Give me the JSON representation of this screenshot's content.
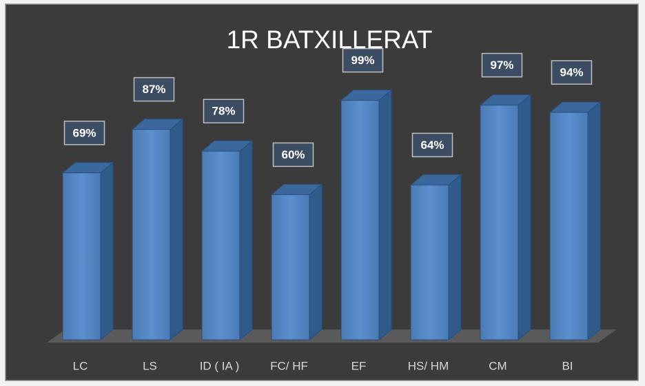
{
  "chart_data": {
    "type": "bar3d",
    "title": "1R  BATXILLERAT",
    "categories": [
      "LC",
      "LS",
      "ID ( IA )",
      "FC/ HF",
      "EF",
      "HS/ HM",
      "CM",
      "BI"
    ],
    "values": [
      69,
      87,
      78,
      60,
      99,
      64,
      97,
      94
    ],
    "value_labels": [
      "69%",
      "87%",
      "78%",
      "60%",
      "99%",
      "64%",
      "97%",
      "94%"
    ],
    "color": "#4f81bd",
    "ylim": [
      0,
      100
    ]
  }
}
